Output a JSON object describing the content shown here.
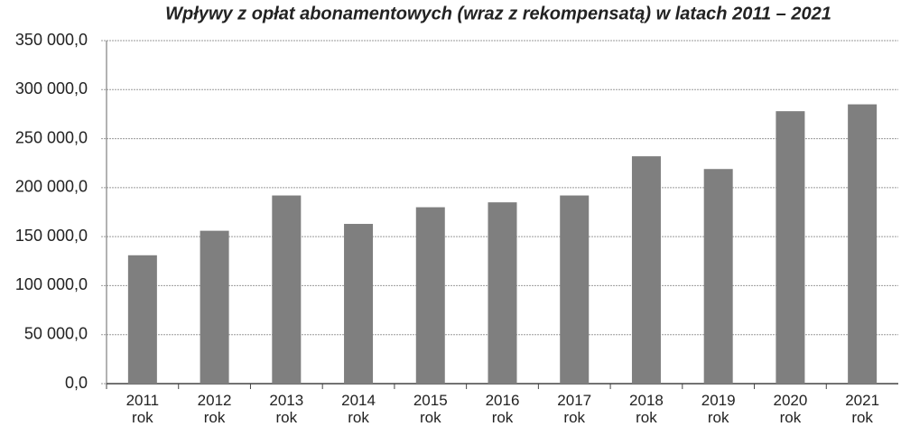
{
  "chart_data": {
    "type": "bar",
    "title": "Wpływy z opłat abonamentowych (wraz z rekompensatą) w latach 2011 – 2021",
    "categories": [
      "2011 rok",
      "2012 rok",
      "2013 rok",
      "2014 rok",
      "2015 rok",
      "2016 rok",
      "2017 rok",
      "2018 rok",
      "2019 rok",
      "2020 rok",
      "2021 rok"
    ],
    "values": [
      131000,
      156000,
      192000,
      163000,
      180000,
      185000,
      192000,
      232000,
      219000,
      278000,
      285000
    ],
    "color": "#7f7f7f",
    "ylim": [
      0,
      350000
    ],
    "yticks": [
      {
        "value": 0,
        "label": "0,0"
      },
      {
        "value": 50000,
        "label": "50 000,0"
      },
      {
        "value": 100000,
        "label": "100 000,0"
      },
      {
        "value": 150000,
        "label": "150 000,0"
      },
      {
        "value": 200000,
        "label": "200 000,0"
      },
      {
        "value": 250000,
        "label": "250 000,0"
      },
      {
        "value": 300000,
        "label": "300 000,0"
      },
      {
        "value": 350000,
        "label": "350 000,0"
      }
    ],
    "grid": true
  }
}
